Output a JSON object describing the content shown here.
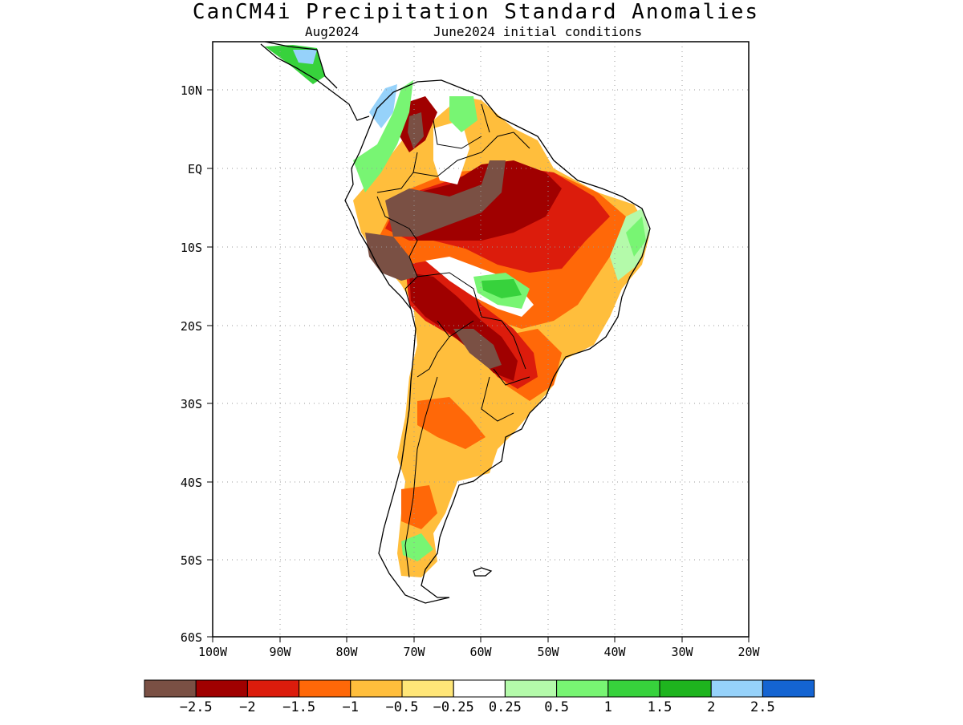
{
  "title": "CanCM4i Precipitation Standard Anomalies",
  "subtitle_left": "Aug2024",
  "subtitle_right": "June2024 initial conditions",
  "map": {
    "lat_labels": [
      "10N",
      "EQ",
      "10S",
      "20S",
      "30S",
      "40S",
      "50S",
      "60S"
    ],
    "lat_values": [
      10,
      0,
      -10,
      -20,
      -30,
      -40,
      -50,
      -60
    ],
    "lon_labels": [
      "100W",
      "90W",
      "80W",
      "70W",
      "60W",
      "50W",
      "40W",
      "30W",
      "20W"
    ],
    "lon_values": [
      -100,
      -90,
      -80,
      -70,
      -60,
      -50,
      -40,
      -30,
      -20
    ],
    "extent": {
      "lon_min": -100,
      "lon_max": -20,
      "lat_min": -60,
      "lat_max": 16
    }
  },
  "colorbar": {
    "colors": [
      "#7a5044",
      "#a00000",
      "#dc1c0c",
      "#ff6808",
      "#ffbe3c",
      "#ffe678",
      "#ffffff",
      "#b4faaa",
      "#78f573",
      "#37d23c",
      "#1eb41e",
      "#96d2fa",
      "#1464d2"
    ],
    "labels": [
      "−2.5",
      "−2",
      "−1.5",
      "−1",
      "−0.5",
      "−0.25",
      "0.25",
      "0.5",
      "1",
      "1.5",
      "2",
      "2.5"
    ]
  }
}
